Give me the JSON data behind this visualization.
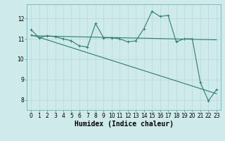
{
  "title": "",
  "xlabel": "Humidex (Indice chaleur)",
  "ylabel": "",
  "bg_color": "#ceeaea",
  "line_color": "#2e7d6e",
  "grid_color": "#b8d8d8",
  "x_ticks": [
    0,
    1,
    2,
    3,
    4,
    5,
    6,
    7,
    8,
    9,
    10,
    11,
    12,
    13,
    14,
    15,
    16,
    17,
    18,
    19,
    20,
    21,
    22,
    23
  ],
  "y_ticks": [
    8,
    9,
    10,
    11,
    12
  ],
  "ylim": [
    7.5,
    12.7
  ],
  "xlim": [
    -0.5,
    23.5
  ],
  "series1_x": [
    0,
    1,
    2,
    3,
    4,
    5,
    6,
    7,
    8,
    9,
    10,
    11,
    12,
    13,
    14,
    15,
    16,
    17,
    18,
    19,
    20,
    21,
    22,
    23
  ],
  "series1_y": [
    11.45,
    11.05,
    11.15,
    11.1,
    11.0,
    10.9,
    10.65,
    10.6,
    11.75,
    11.05,
    11.05,
    11.0,
    10.85,
    10.9,
    11.5,
    12.35,
    12.1,
    12.15,
    10.85,
    11.0,
    11.0,
    8.85,
    7.95,
    8.5
  ],
  "series2_x": [
    0,
    23
  ],
  "series2_y": [
    11.15,
    10.95
  ],
  "series3_x": [
    0,
    23
  ],
  "series3_y": [
    11.2,
    8.3
  ],
  "marker_size": 2.5,
  "linewidth": 0.8,
  "tick_fontsize": 5.5,
  "xlabel_fontsize": 7
}
